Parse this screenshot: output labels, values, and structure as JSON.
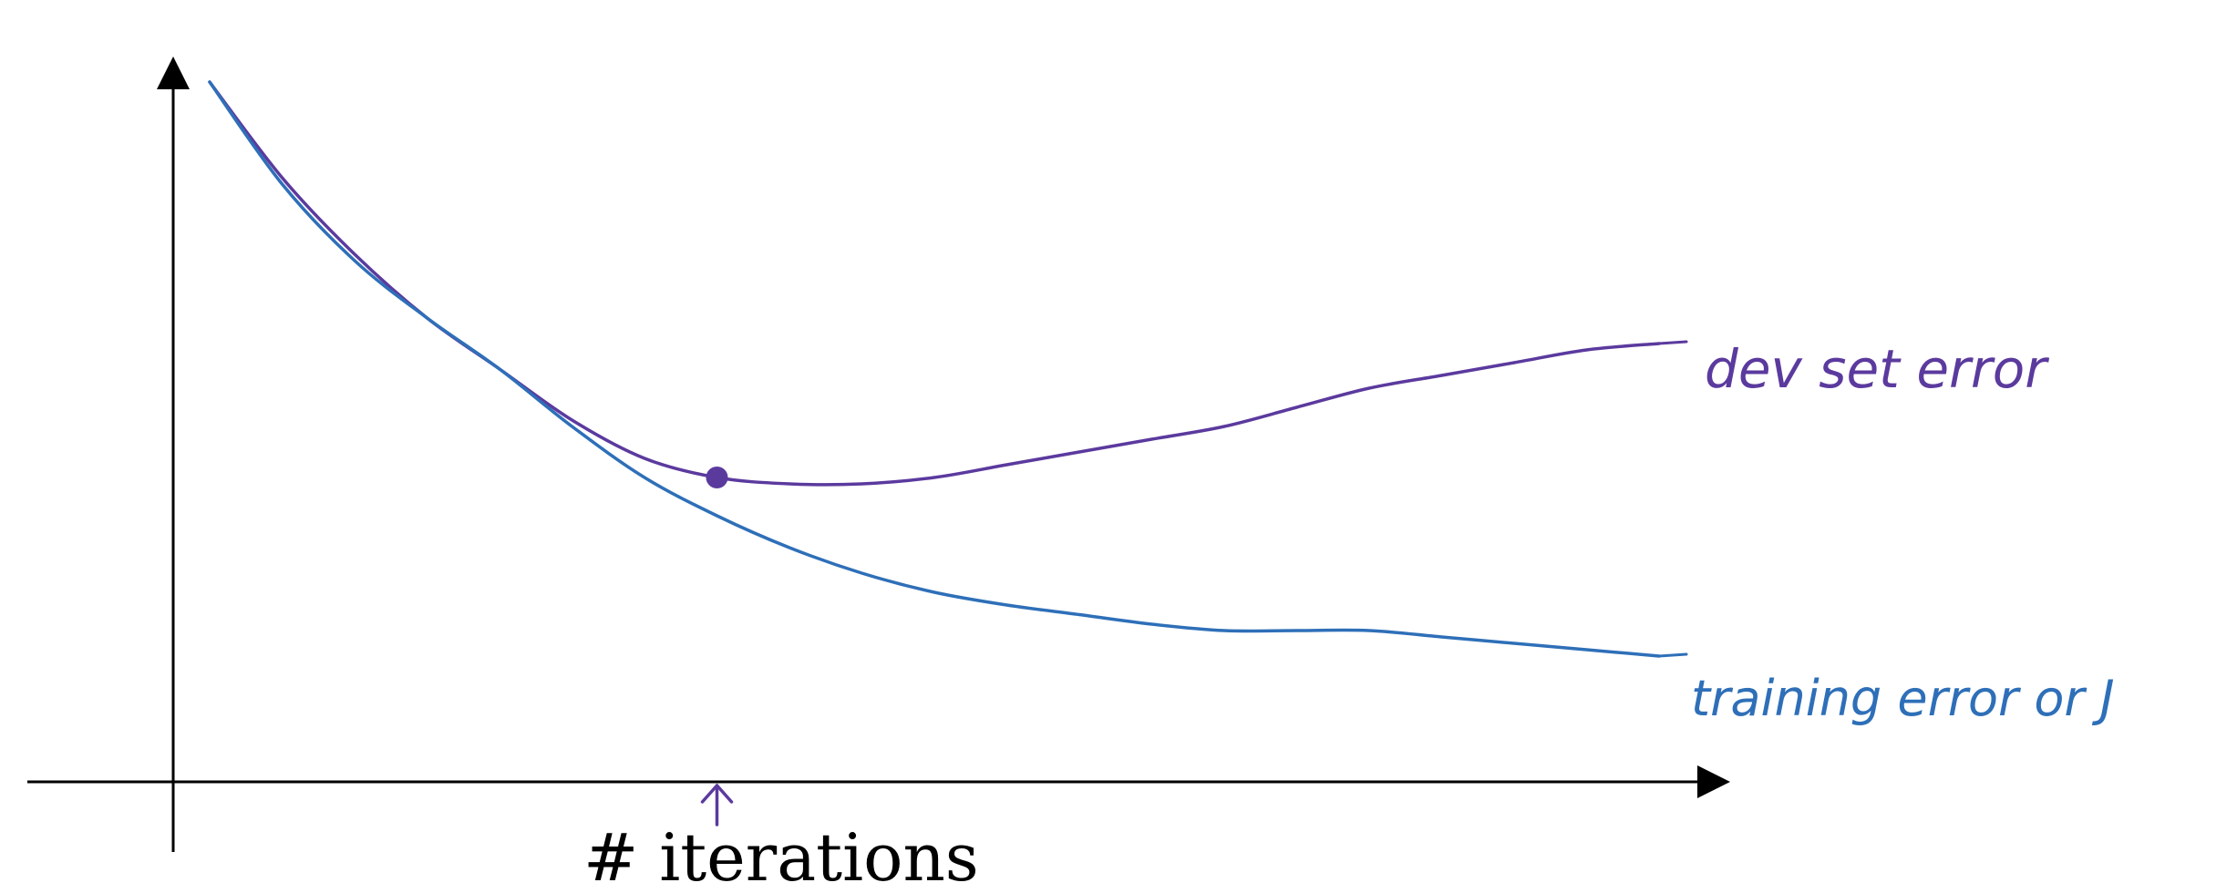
{
  "chart_data": {
    "type": "line",
    "title": "",
    "xlabel": "# iterations",
    "ylabel": "",
    "grid": false,
    "x": [
      0,
      5,
      10,
      15,
      20,
      25,
      30,
      35,
      40,
      45,
      50,
      55,
      60,
      65,
      70,
      75,
      80,
      85,
      90,
      95,
      100
    ],
    "xlim": [
      0,
      100
    ],
    "ylim": [
      0,
      100
    ],
    "series": [
      {
        "name": "dev set error",
        "color": "#5b3a9e",
        "values": [
          100,
          85,
          73,
          63,
          55,
          47,
          41,
          38,
          37,
          37,
          38,
          40,
          42,
          44,
          46,
          49,
          52,
          54,
          56,
          58,
          59
        ]
      },
      {
        "name": "training error or J",
        "color": "#2e6fb8",
        "values": [
          100,
          84,
          72,
          63,
          55,
          46,
          38,
          32,
          27,
          23,
          20,
          18,
          16.5,
          15,
          14,
          14,
          14,
          13,
          12,
          11,
          10
        ]
      }
    ],
    "annotations": [
      {
        "text": "dev set error",
        "series": 0,
        "color": "#5b3a9e"
      },
      {
        "text": "training error or J",
        "series": 1,
        "color": "#2e6fb8"
      }
    ],
    "marker": {
      "x": 35,
      "series": 0,
      "color": "#5b3a9e"
    },
    "x_arrow": {
      "x": 35,
      "color": "#5b3a9e"
    }
  }
}
